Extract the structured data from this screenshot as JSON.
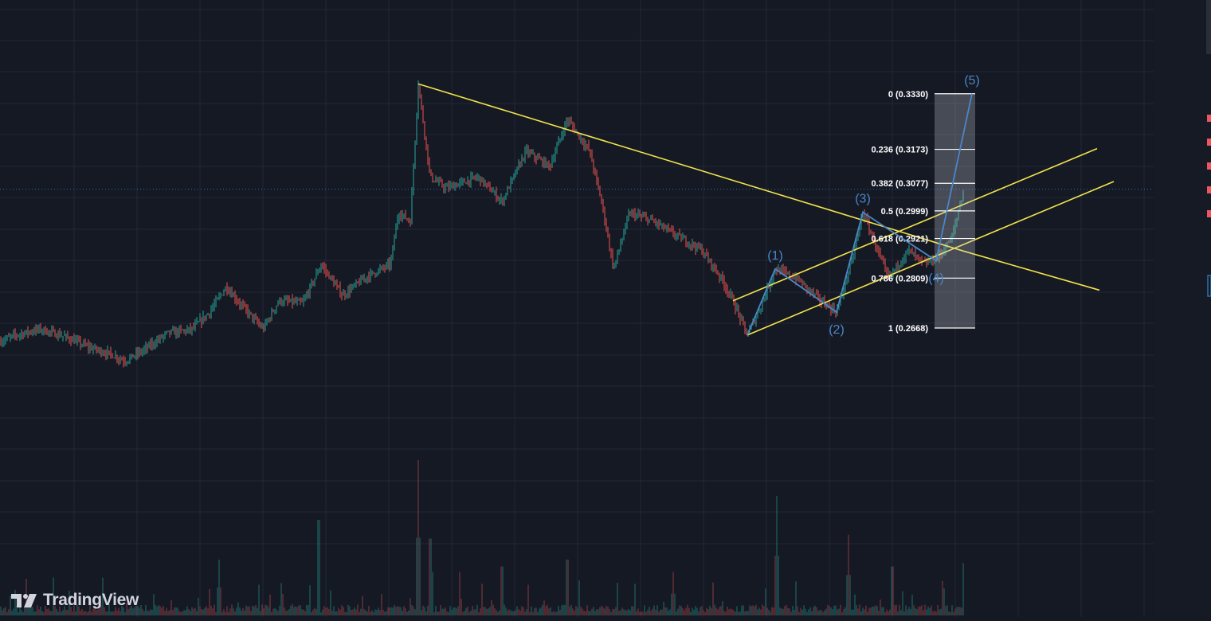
{
  "watermark": {
    "text": "TradingView",
    "icon": "tradingview-logo-icon"
  },
  "colors": {
    "background": "#151924",
    "grid": "#232838",
    "up": "#26a69a",
    "down": "#ef5350",
    "volume_up": "#1f6f6a",
    "volume_down": "#8a3b42",
    "trendline": "#f2e34a",
    "wave": "#4a86c8",
    "fib_line": "#ffffff",
    "fib_zone": "#c8ccd4",
    "price_marker": "#2a6fb0",
    "gutter_marker": "#f0545c"
  },
  "chart_data": {
    "type": "candlestick",
    "title": "",
    "xlabel": "",
    "ylabel": "",
    "grid": true,
    "ylim": [
      0.22,
      0.355
    ],
    "price_series": [
      {
        "x": 0,
        "close": 0.263
      },
      {
        "x": 20,
        "close": 0.2648
      },
      {
        "x": 50,
        "close": 0.2665
      },
      {
        "x": 80,
        "close": 0.2645
      },
      {
        "x": 110,
        "close": 0.2615
      },
      {
        "x": 140,
        "close": 0.2593
      },
      {
        "x": 157,
        "close": 0.2575
      },
      {
        "x": 180,
        "close": 0.2605
      },
      {
        "x": 210,
        "close": 0.2653
      },
      {
        "x": 240,
        "close": 0.2663
      },
      {
        "x": 262,
        "close": 0.271
      },
      {
        "x": 284,
        "close": 0.2785
      },
      {
        "x": 300,
        "close": 0.274
      },
      {
        "x": 330,
        "close": 0.2665
      },
      {
        "x": 350,
        "close": 0.2745
      },
      {
        "x": 380,
        "close": 0.2738
      },
      {
        "x": 403,
        "close": 0.2847
      },
      {
        "x": 430,
        "close": 0.276
      },
      {
        "x": 460,
        "close": 0.2813
      },
      {
        "x": 490,
        "close": 0.2848
      },
      {
        "x": 500,
        "close": 0.2995
      },
      {
        "x": 515,
        "close": 0.297
      },
      {
        "x": 525,
        "close": 0.3358
      },
      {
        "x": 540,
        "close": 0.3095
      },
      {
        "x": 560,
        "close": 0.3063
      },
      {
        "x": 600,
        "close": 0.3095
      },
      {
        "x": 630,
        "close": 0.3025
      },
      {
        "x": 660,
        "close": 0.3168
      },
      {
        "x": 690,
        "close": 0.3125
      },
      {
        "x": 712,
        "close": 0.3258
      },
      {
        "x": 740,
        "close": 0.3168
      },
      {
        "x": 756,
        "close": 0.3015
      },
      {
        "x": 770,
        "close": 0.2835
      },
      {
        "x": 790,
        "close": 0.2993
      },
      {
        "x": 820,
        "close": 0.297
      },
      {
        "x": 850,
        "close": 0.2928
      },
      {
        "x": 880,
        "close": 0.289
      },
      {
        "x": 905,
        "close": 0.281
      },
      {
        "x": 920,
        "close": 0.2745
      },
      {
        "x": 938,
        "close": 0.2648
      },
      {
        "x": 955,
        "close": 0.273
      },
      {
        "x": 973,
        "close": 0.2835
      },
      {
        "x": 1000,
        "close": 0.2808
      },
      {
        "x": 1030,
        "close": 0.2745
      },
      {
        "x": 1050,
        "close": 0.2713
      },
      {
        "x": 1070,
        "close": 0.2865
      },
      {
        "x": 1083,
        "close": 0.2995
      },
      {
        "x": 1100,
        "close": 0.2895
      },
      {
        "x": 1115,
        "close": 0.2808
      },
      {
        "x": 1140,
        "close": 0.2888
      },
      {
        "x": 1160,
        "close": 0.2848
      },
      {
        "x": 1178,
        "close": 0.2868
      },
      {
        "x": 1195,
        "close": 0.2925
      },
      {
        "x": 1210,
        "close": 0.3062
      }
    ],
    "volume_spikes": [
      {
        "x": 400,
        "v": 0.82
      },
      {
        "x": 525,
        "v": 1.0
      },
      {
        "x": 540,
        "v": 0.66
      },
      {
        "x": 630,
        "v": 0.42
      },
      {
        "x": 712,
        "v": 0.48
      },
      {
        "x": 975,
        "v": 0.77
      },
      {
        "x": 1065,
        "v": 0.52
      },
      {
        "x": 1210,
        "v": 0.45
      },
      {
        "x": 275,
        "v": 0.36
      },
      {
        "x": 845,
        "v": 0.28
      },
      {
        "x": 1120,
        "v": 0.42
      }
    ],
    "trendlines": [
      {
        "name": "",
        "from": {
          "x": 525,
          "y": 0.3358
        },
        "to": {
          "x": 1210,
          "y": 0.2885
        }
      },
      {
        "name": "",
        "from": {
          "x": 1210,
          "y": 0.2885
        },
        "to": {
          "x": 1380,
          "y": 0.2775
        }
      },
      {
        "name": "",
        "from": {
          "x": 920,
          "y": 0.2745
        },
        "to": {
          "x": 1377,
          "y": 0.3175
        }
      },
      {
        "name": "",
        "from": {
          "x": 938,
          "y": 0.2648
        },
        "to": {
          "x": 1398,
          "y": 0.3082
        }
      }
    ],
    "elliott_waves": [
      {
        "label": "(1)",
        "x": 973,
        "y": 0.2835
      },
      {
        "label": "(2)",
        "x": 1050,
        "y": 0.2713
      },
      {
        "label": "(3)",
        "x": 1083,
        "y": 0.2995
      },
      {
        "label": "(4)",
        "x": 1175,
        "y": 0.2858
      },
      {
        "label": "(5)",
        "x": 1220,
        "y": 0.333
      }
    ],
    "fibonacci": {
      "x_start": 1173,
      "x_end": 1224,
      "levels": [
        {
          "label": "0 (0.3330)",
          "ratio": 0,
          "price": 0.333
        },
        {
          "label": "0.236 (0.3173)",
          "ratio": 0.236,
          "price": 0.3173
        },
        {
          "label": "0.382 (0.3077)",
          "ratio": 0.382,
          "price": 0.3077
        },
        {
          "label": "0.5 (0.2999)",
          "ratio": 0.5,
          "price": 0.2999
        },
        {
          "label": "0.618 (0.2921)",
          "ratio": 0.618,
          "price": 0.2921
        },
        {
          "label": "0.786 (0.2809)",
          "ratio": 0.786,
          "price": 0.2809
        },
        {
          "label": "1 (0.2668)",
          "ratio": 1,
          "price": 0.2668
        }
      ]
    },
    "current_price": 0.306
  }
}
